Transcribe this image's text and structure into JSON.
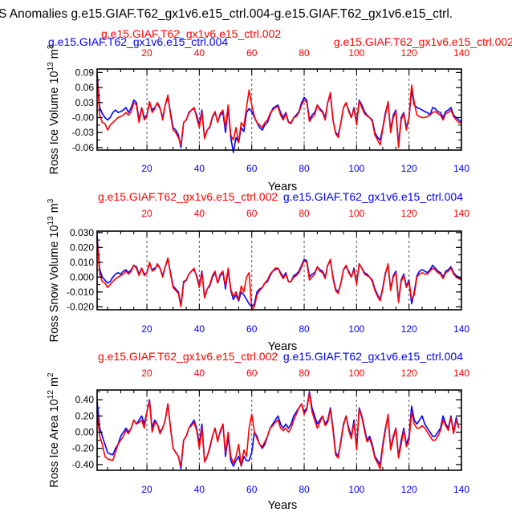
{
  "page": {
    "main_title": "S Anomalies g.e15.GIAF.T62_gx1v6.e15_ctrl.004-g.e15.GIAF.T62_gx1v6.e15_ctrl.",
    "colors": {
      "case1": "#0000ff",
      "case2": "#ff0000"
    }
  },
  "chart_data": [
    {
      "type": "line",
      "ylabel": "Ross Ice Volume 10",
      "ylabel_exp": "13",
      "ylabel_unit": "m",
      "ylabel_unit_exp": "3",
      "xlabel": "Years",
      "xlim": [
        1,
        140
      ],
      "ylim": [
        -0.065,
        0.097
      ],
      "yticks": [
        -0.06,
        -0.03,
        0.0,
        0.03,
        0.06,
        0.09
      ],
      "ytick_labels": [
        "-0.06",
        "-0.03",
        "-0.00",
        "0.03",
        "0.06",
        "0.09"
      ],
      "xticks": [
        20,
        40,
        60,
        80,
        100,
        120,
        140
      ],
      "xtick_labels": [
        "20",
        "40",
        "60",
        "80",
        "100",
        "120",
        "140"
      ],
      "top_left_label": "g.e15.GIAF.T62_gx1v6.e15_ctrl.004",
      "top_right_label": "g.e15.GIAF.T62_gx1v6.e15_ctrl.002",
      "series": [
        {
          "name": "g.e15.GIAF.T62_gx1v6.e15_ctrl.004",
          "color": "#0000ff",
          "values": [
            0.088,
            0.02,
            0.008,
            0.0,
            -0.005,
            0.0,
            0.01,
            0.015,
            0.01,
            0.012,
            0.015,
            0.02,
            0.01,
            0.02,
            0.035,
            0.03,
            -0.005,
            0.02,
            0.0,
            0.005,
            0.03,
            0.015,
            0.02,
            0.028,
            0.018,
            0.0,
            0.025,
            0.04,
            0.01,
            -0.02,
            -0.025,
            -0.035,
            -0.06,
            -0.01,
            -0.005,
            0.01,
            0.015,
            0.018,
            0.005,
            -0.015,
            0.015,
            -0.04,
            -0.025,
            -0.02,
            0.0,
            0.01,
            -0.008,
            0.005,
            0.01,
            -0.03,
            0.02,
            -0.04,
            -0.07,
            -0.04,
            -0.05,
            -0.02,
            -0.028,
            0.01,
            0.018,
            0.012,
            0.0,
            -0.01,
            -0.02,
            -0.025,
            -0.015,
            -0.01,
            0.005,
            0.018,
            0.022,
            0.025,
            0.01,
            0.0,
            0.01,
            -0.008,
            -0.012,
            0.0,
            0.005,
            0.012,
            0.03,
            0.04,
            0.035,
            -0.005,
            0.005,
            0.01,
            0.025,
            0.018,
            0.012,
            0.0,
            0.03,
            0.045,
            -0.005,
            -0.03,
            -0.035,
            -0.01,
            0.02,
            0.028,
            0.015,
            0.0,
            0.02,
            -0.01,
            0.035,
            0.025,
            0.012,
            0.005,
            0.0,
            -0.005,
            -0.03,
            -0.04,
            -0.045,
            -0.02,
            0.01,
            0.03,
            -0.025,
            0.005,
            0.015,
            -0.055,
            0.0,
            0.01,
            -0.02,
            0.0,
            0.055,
            0.025,
            0.02,
            0.018,
            0.015,
            0.012,
            0.01,
            0.005,
            0.02,
            0.018,
            0.012,
            0.01,
            0.0,
            0.012,
            0.015,
            0.02,
            0.005,
            0.0,
            -0.005,
            -0.01
          ]
        },
        {
          "name": "g.e15.GIAF.T62_gx1v6.e15_ctrl.002",
          "color": "#ff0000",
          "values": [
            0.085,
            0.005,
            -0.01,
            -0.012,
            -0.025,
            -0.015,
            -0.01,
            -0.005,
            0.0,
            0.002,
            0.005,
            0.01,
            0.005,
            0.012,
            0.03,
            0.025,
            -0.01,
            0.02,
            -0.005,
            0.003,
            0.032,
            0.01,
            0.018,
            0.03,
            0.02,
            -0.005,
            0.025,
            0.045,
            0.005,
            -0.025,
            -0.03,
            -0.04,
            -0.055,
            -0.01,
            -0.005,
            0.008,
            0.015,
            0.02,
            0.0,
            -0.02,
            0.01,
            -0.042,
            -0.025,
            -0.018,
            0.002,
            0.012,
            -0.01,
            0.008,
            0.015,
            -0.02,
            0.025,
            -0.035,
            -0.045,
            -0.02,
            -0.05,
            -0.01,
            -0.018,
            0.02,
            0.055,
            0.025,
            0.002,
            -0.01,
            -0.015,
            -0.02,
            -0.01,
            -0.005,
            0.008,
            0.015,
            0.02,
            0.022,
            0.005,
            -0.005,
            0.008,
            -0.01,
            -0.01,
            0.0,
            0.002,
            0.01,
            0.025,
            0.035,
            0.03,
            -0.008,
            0.0,
            0.005,
            0.025,
            0.015,
            0.01,
            -0.005,
            0.03,
            0.05,
            -0.005,
            -0.032,
            -0.04,
            -0.01,
            0.02,
            0.03,
            0.012,
            0.0,
            0.018,
            -0.015,
            0.033,
            0.02,
            0.008,
            0.003,
            0.0,
            -0.008,
            -0.035,
            -0.045,
            -0.055,
            -0.022,
            0.005,
            0.032,
            -0.03,
            0.0,
            0.012,
            -0.06,
            -0.005,
            0.008,
            -0.025,
            0.0,
            0.065,
            0.03,
            0.005,
            0.002,
            0.0,
            0.0,
            0.002,
            0.005,
            0.01,
            0.012,
            0.008,
            0.005,
            -0.005,
            0.008,
            0.01,
            0.015,
            0.002,
            -0.005,
            -0.01,
            -0.01
          ]
        }
      ]
    },
    {
      "type": "line",
      "ylabel": "Ross Snow Volume 10",
      "ylabel_exp": "13",
      "ylabel_unit": "m",
      "ylabel_unit_exp": "3",
      "xlabel": "Years",
      "xlim": [
        1,
        140
      ],
      "ylim": [
        -0.022,
        0.031
      ],
      "yticks": [
        -0.02,
        -0.01,
        0.0,
        0.01,
        0.02,
        0.03
      ],
      "ytick_labels": [
        "-0.020",
        "-0.010",
        "0.000",
        "0.010",
        "0.020",
        "0.030"
      ],
      "xticks": [
        20,
        40,
        60,
        80,
        100,
        120,
        140
      ],
      "xtick_labels": [
        "20",
        "40",
        "60",
        "80",
        "100",
        "120",
        "140"
      ],
      "top_left_label": "g.e15.GIAF.T62_gx1v6.e15_ctrl.002",
      "top_right_label": "g.e15.GIAF.T62_gx1v6.e15_ctrl.004",
      "series": [
        {
          "name": "g.e15.GIAF.T62_gx1v6.e15_ctrl.004",
          "color": "#0000ff",
          "values": [
            0.028,
            0.005,
            0.0,
            -0.002,
            -0.004,
            -0.003,
            0.0,
            0.002,
            0.003,
            0.002,
            0.004,
            0.005,
            0.003,
            0.005,
            0.008,
            0.007,
            0.002,
            0.006,
            0.002,
            0.003,
            0.009,
            0.005,
            0.006,
            0.008,
            0.006,
            0.001,
            0.007,
            0.012,
            0.003,
            -0.006,
            -0.008,
            -0.01,
            -0.019,
            -0.003,
            -0.002,
            0.002,
            0.004,
            0.005,
            0.001,
            -0.006,
            0.004,
            -0.013,
            -0.008,
            -0.006,
            0.0,
            0.003,
            -0.004,
            0.001,
            0.003,
            -0.008,
            0.005,
            -0.009,
            -0.015,
            -0.012,
            -0.016,
            -0.01,
            -0.012,
            -0.015,
            -0.018,
            -0.02,
            -0.018,
            -0.01,
            -0.008,
            -0.007,
            -0.004,
            -0.003,
            0.001,
            0.004,
            0.005,
            0.006,
            0.003,
            0.0,
            0.003,
            -0.003,
            -0.003,
            0.001,
            0.002,
            0.004,
            0.008,
            0.012,
            0.011,
            0.0,
            0.002,
            0.003,
            0.007,
            0.005,
            0.004,
            0.0,
            0.008,
            0.011,
            0.0,
            -0.008,
            -0.01,
            -0.004,
            0.005,
            0.007,
            0.004,
            0.0,
            0.006,
            -0.004,
            0.009,
            0.006,
            0.003,
            0.002,
            0.0,
            -0.002,
            -0.008,
            -0.012,
            -0.015,
            -0.007,
            0.003,
            0.008,
            -0.008,
            0.001,
            0.004,
            -0.016,
            -0.002,
            0.002,
            -0.006,
            -0.002,
            -0.018,
            -0.01,
            0.001,
            0.004,
            0.005,
            0.004,
            0.003,
            0.005,
            0.008,
            0.006,
            0.004,
            0.003,
            0.0,
            0.004,
            0.005,
            0.007,
            0.003,
            0.001,
            0.0,
            -0.002
          ]
        },
        {
          "name": "g.e15.GIAF.T62_gx1v6.e15_ctrl.002",
          "color": "#ff0000",
          "values": [
            0.026,
            0.002,
            -0.003,
            -0.004,
            -0.007,
            -0.005,
            -0.003,
            -0.001,
            0.0,
            0.001,
            0.002,
            0.004,
            0.002,
            0.004,
            0.008,
            0.006,
            0.001,
            0.006,
            0.001,
            0.003,
            0.01,
            0.004,
            0.005,
            0.009,
            0.006,
            0.0,
            0.007,
            0.013,
            0.002,
            -0.007,
            -0.009,
            -0.011,
            -0.02,
            -0.004,
            -0.002,
            0.002,
            0.004,
            0.006,
            0.0,
            -0.007,
            0.003,
            -0.014,
            -0.008,
            -0.005,
            0.001,
            0.004,
            -0.004,
            0.002,
            0.004,
            -0.006,
            0.006,
            -0.008,
            -0.013,
            -0.01,
            -0.015,
            -0.006,
            -0.01,
            0.0,
            0.003,
            -0.022,
            -0.02,
            -0.012,
            -0.009,
            -0.007,
            -0.004,
            -0.002,
            0.002,
            0.004,
            0.006,
            0.006,
            0.002,
            -0.001,
            0.002,
            -0.003,
            -0.003,
            0.0,
            0.001,
            0.003,
            0.007,
            0.011,
            0.01,
            -0.002,
            0.0,
            0.002,
            0.007,
            0.004,
            0.003,
            -0.001,
            0.008,
            0.012,
            -0.001,
            -0.009,
            -0.011,
            -0.004,
            0.005,
            0.008,
            0.003,
            0.0,
            0.005,
            -0.005,
            0.009,
            0.006,
            0.002,
            0.001,
            0.0,
            -0.003,
            -0.009,
            -0.013,
            -0.016,
            -0.008,
            0.002,
            0.009,
            -0.009,
            0.0,
            0.003,
            -0.017,
            -0.003,
            0.001,
            -0.007,
            -0.003,
            -0.015,
            -0.012,
            0.0,
            0.002,
            0.003,
            0.002,
            0.002,
            0.004,
            0.006,
            0.005,
            0.003,
            0.002,
            -0.001,
            0.003,
            0.004,
            0.006,
            0.002,
            0.0,
            -0.001,
            -0.002
          ]
        }
      ]
    },
    {
      "type": "line",
      "ylabel": "Ross Ice Area 10",
      "ylabel_exp": "12",
      "ylabel_unit": "m",
      "ylabel_unit_exp": "2",
      "xlabel": "Years",
      "xlim": [
        1,
        140
      ],
      "ylim": [
        -0.47,
        0.52
      ],
      "yticks": [
        -0.4,
        -0.2,
        0.0,
        0.2,
        0.4
      ],
      "ytick_labels": [
        "-0.40",
        "-0.20",
        "0.00",
        "0.20",
        "0.40"
      ],
      "xticks": [
        20,
        40,
        60,
        80,
        100,
        120,
        140
      ],
      "xtick_labels": [
        "20",
        "40",
        "60",
        "80",
        "100",
        "120",
        "140"
      ],
      "top_left_label": "g.e15.GIAF.T62_gx1v6.e15_ctrl.002",
      "top_right_label": "g.e15.GIAF.T62_gx1v6.e15_ctrl.004",
      "series": [
        {
          "name": "g.e15.GIAF.T62_gx1v6.e15_ctrl.004",
          "color": "#0000ff",
          "values": [
            0.38,
            0.05,
            -0.05,
            -0.15,
            -0.25,
            -0.27,
            -0.28,
            -0.2,
            -0.15,
            -0.05,
            0.0,
            0.05,
            0.0,
            0.05,
            0.15,
            0.1,
            0.15,
            0.2,
            0.1,
            0.25,
            0.4,
            0.05,
            0.15,
            0.1,
            0.0,
            0.05,
            0.15,
            0.35,
            0.05,
            -0.2,
            -0.25,
            -0.3,
            -0.45,
            -0.1,
            -0.05,
            0.05,
            0.1,
            0.15,
            0.05,
            -0.15,
            0.1,
            -0.35,
            -0.3,
            -0.2,
            -0.05,
            0.05,
            -0.1,
            0.0,
            0.1,
            -0.3,
            -0.05,
            -0.35,
            -0.42,
            -0.35,
            -0.3,
            -0.42,
            -0.3,
            -0.35,
            -0.35,
            -0.25,
            0.0,
            -0.05,
            -0.15,
            -0.2,
            -0.15,
            -0.05,
            0.05,
            0.1,
            0.15,
            0.2,
            0.1,
            0.05,
            0.1,
            0.05,
            0.1,
            0.2,
            0.25,
            0.3,
            0.35,
            0.25,
            0.3,
            0.5,
            0.3,
            0.2,
            0.1,
            0.15,
            0.2,
            0.1,
            0.15,
            0.3,
            0.05,
            -0.25,
            -0.3,
            -0.1,
            0.1,
            0.2,
            0.05,
            -0.05,
            0.15,
            -0.2,
            0.3,
            0.2,
            0.05,
            -0.1,
            -0.05,
            -0.15,
            -0.3,
            -0.35,
            -0.4,
            -0.15,
            0.05,
            0.2,
            -0.2,
            -0.05,
            0.05,
            -0.3,
            -0.1,
            0.05,
            -0.15,
            -0.05,
            0.32,
            0.15,
            0.1,
            0.15,
            0.2,
            0.1,
            0.05,
            0.0,
            -0.05,
            -0.05,
            0.0,
            0.05,
            0.2,
            0.1,
            0.05,
            0.2,
            0.0,
            0.18,
            0.05
          ]
        },
        {
          "name": "g.e15.GIAF.T62_gx1v6.e15_ctrl.002",
          "color": "#ff0000",
          "values": [
            0.25,
            -0.05,
            -0.15,
            -0.3,
            -0.33,
            -0.34,
            -0.35,
            -0.25,
            -0.15,
            -0.1,
            -0.05,
            0.02,
            -0.02,
            0.05,
            0.15,
            0.1,
            0.12,
            0.15,
            0.05,
            0.25,
            0.38,
            0.0,
            0.12,
            0.1,
            -0.02,
            0.05,
            0.15,
            0.35,
            0.05,
            -0.2,
            -0.25,
            -0.3,
            -0.42,
            -0.1,
            -0.05,
            0.05,
            0.08,
            0.12,
            0.02,
            -0.2,
            0.05,
            -0.37,
            -0.3,
            -0.18,
            -0.05,
            0.05,
            -0.12,
            0.02,
            0.1,
            -0.25,
            0.0,
            -0.3,
            -0.38,
            -0.3,
            -0.15,
            -0.42,
            -0.22,
            -0.3,
            0.05,
            0.22,
            0.0,
            -0.08,
            -0.15,
            -0.18,
            -0.12,
            -0.05,
            0.05,
            0.08,
            0.12,
            0.15,
            0.05,
            0.02,
            0.05,
            0.0,
            0.05,
            0.15,
            0.22,
            0.3,
            0.35,
            0.22,
            0.28,
            0.48,
            0.25,
            0.15,
            0.05,
            0.12,
            0.2,
            0.08,
            0.12,
            0.28,
            0.02,
            -0.28,
            -0.32,
            -0.12,
            0.08,
            0.2,
            0.02,
            -0.08,
            0.12,
            -0.22,
            0.28,
            0.18,
            0.02,
            -0.12,
            -0.08,
            -0.18,
            -0.32,
            -0.38,
            -0.45,
            -0.18,
            0.02,
            0.22,
            -0.22,
            -0.08,
            0.05,
            -0.32,
            -0.15,
            0.02,
            -0.18,
            -0.1,
            0.25,
            0.1,
            0.05,
            0.05,
            0.08,
            0.05,
            0.0,
            -0.05,
            -0.1,
            -0.1,
            -0.05,
            0.02,
            0.15,
            0.08,
            0.02,
            0.18,
            -0.02,
            0.15,
            0.05
          ]
        }
      ]
    }
  ]
}
